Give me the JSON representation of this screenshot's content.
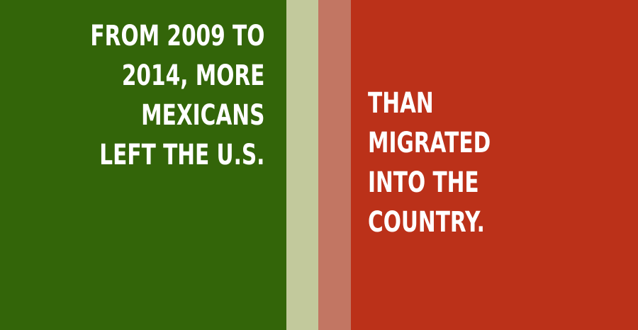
{
  "colors": {
    "green_panel": "#336509",
    "light_stripe": "#c2c99c",
    "rose_stripe": "#c27663",
    "red_panel": "#bb3119",
    "text": "#ffffff"
  },
  "left_statement": "FROM 2009 TO\n2014, MORE\nMEXICANS\nLEFT THE U.S.",
  "right_statement": "THAN\nMIGRATED\nINTO THE\nCOUNTRY."
}
